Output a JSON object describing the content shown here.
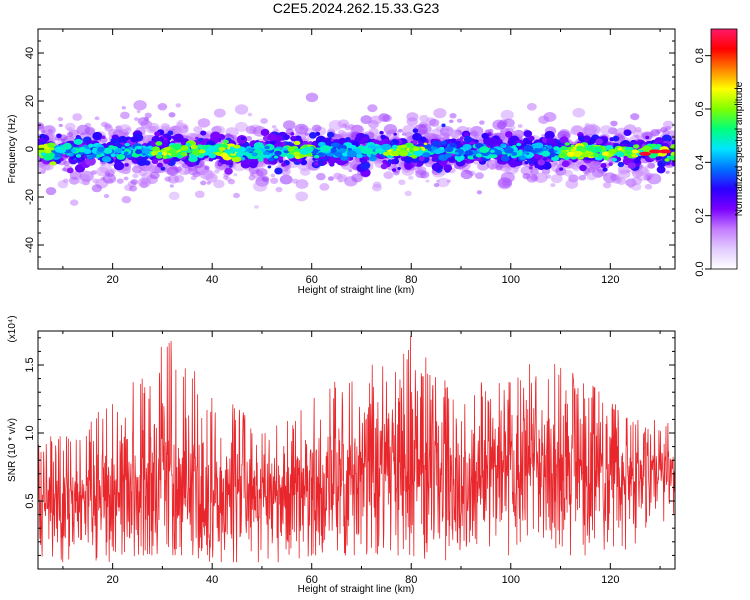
{
  "title": "C2E5.2024.262.15.33.G23",
  "chart_data": [
    {
      "type": "heatmap",
      "xlabel": "Height of straight line (km)",
      "ylabel": "Frequency (Hz)",
      "xlim": [
        5,
        133
      ],
      "ylim": [
        -50,
        50
      ],
      "xticks": [
        20,
        40,
        60,
        80,
        100,
        120
      ],
      "yticks": [
        -40,
        -20,
        0,
        20,
        40
      ],
      "colorbar": {
        "label": "Normalized spectral amplitude",
        "range": [
          0,
          0.9
        ],
        "ticks": [
          0.0,
          0.2,
          0.4,
          0.6,
          0.8
        ],
        "colormap": [
          "#ffffff",
          "#e2ccff",
          "#c47bff",
          "#7a00ff",
          "#2a00ff",
          "#0070ff",
          "#00e5ff",
          "#00ff7a",
          "#7fff00",
          "#ffff00",
          "#ff8000",
          "#ff0000",
          "#ff1a6a"
        ]
      },
      "description_values": {
        "center_frequency_hz": -1,
        "core_halfwidth_hz": 5,
        "max_spread_hz": 25,
        "high_amplitude_ranges_km": [
          [
            5,
            8
          ],
          [
            28,
            45
          ],
          [
            55,
            60
          ],
          [
            75,
            83
          ],
          [
            110,
            133
          ]
        ],
        "peak_amplitude": 0.9,
        "peak_x_km": 129
      }
    },
    {
      "type": "line",
      "xlabel": "Height of straight line (km)",
      "ylabel": "SNR (10 * v/v)",
      "yscale_label": "(x10⁴)",
      "xlim": [
        5,
        133
      ],
      "ylim": [
        0,
        1.75
      ],
      "xticks": [
        20,
        40,
        60,
        80,
        100,
        120
      ],
      "yticks": [
        0.5,
        1.0,
        1.5
      ],
      "series": [
        {
          "color": "#e8262b",
          "envelope": {
            "x": [
              5,
              10,
              15,
              20,
              25,
              30,
              32,
              35,
              40,
              45,
              50,
              55,
              60,
              65,
              70,
              75,
              80,
              85,
              90,
              95,
              100,
              105,
              110,
              115,
              120,
              125,
              130,
              133
            ],
            "upper": [
              0.95,
              1.0,
              1.05,
              1.3,
              1.45,
              1.65,
              1.72,
              1.55,
              1.3,
              1.2,
              1.05,
              1.1,
              1.25,
              1.45,
              1.6,
              1.5,
              1.72,
              1.45,
              1.3,
              1.4,
              1.5,
              1.55,
              1.5,
              1.4,
              1.25,
              1.1,
              1.1,
              1.05
            ],
            "baseline": [
              0.55,
              0.5,
              0.5,
              0.6,
              0.65,
              0.65,
              0.65,
              0.65,
              0.6,
              0.6,
              0.55,
              0.6,
              0.65,
              0.65,
              0.7,
              0.7,
              0.7,
              0.65,
              0.65,
              0.7,
              0.75,
              0.75,
              0.7,
              0.7,
              0.65,
              0.7,
              0.75,
              0.8
            ],
            "lower": [
              0.1,
              0.05,
              0.05,
              0.05,
              0.1,
              0.1,
              0.1,
              0.1,
              0.05,
              0.05,
              0.05,
              0.05,
              0.1,
              0.1,
              0.1,
              0.1,
              0.1,
              0.05,
              0.05,
              0.1,
              0.1,
              0.1,
              0.1,
              0.1,
              0.1,
              0.15,
              0.3,
              0.35
            ]
          }
        }
      ]
    }
  ]
}
